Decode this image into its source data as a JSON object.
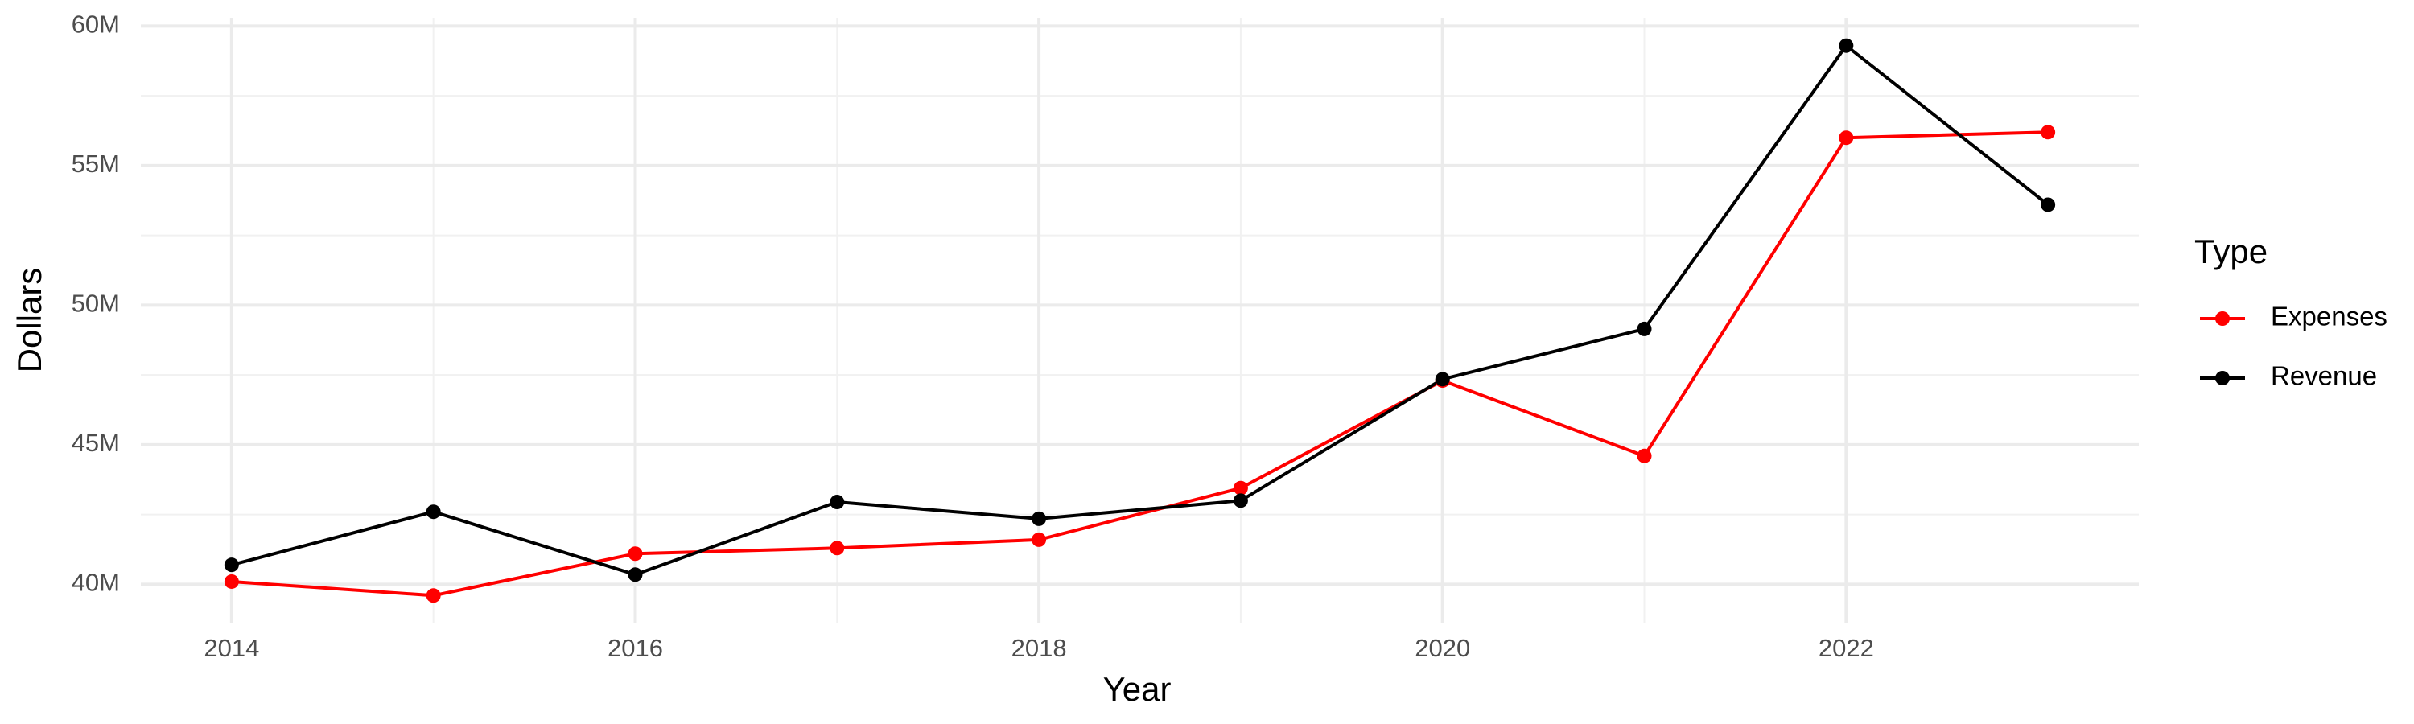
{
  "chart_data": {
    "type": "line",
    "x_label": "Year",
    "y_label": "Dollars",
    "legend_title": "Type",
    "x": [
      2014,
      2015,
      2016,
      2017,
      2018,
      2019,
      2020,
      2021,
      2022,
      2023
    ],
    "series": [
      {
        "name": "Expenses",
        "color": "#ff0000",
        "values": [
          40100000,
          39600000,
          41100000,
          41300000,
          41600000,
          43450000,
          47300000,
          44600000,
          56000000,
          56200000
        ]
      },
      {
        "name": "Revenue",
        "color": "#000000",
        "values": [
          40700000,
          42600000,
          40350000,
          42950000,
          42350000,
          43000000,
          47350000,
          49150000,
          59300000,
          53600000
        ]
      }
    ],
    "xlim": [
      2013.55,
      2023.45
    ],
    "xticks": [
      2014,
      2016,
      2018,
      2020,
      2022
    ],
    "ylim": [
      38600000,
      60300000
    ],
    "yticks": [
      {
        "value": 40000000,
        "label": "40M"
      },
      {
        "value": 45000000,
        "label": "45M"
      },
      {
        "value": 50000000,
        "label": "50M"
      },
      {
        "value": 55000000,
        "label": "55M"
      },
      {
        "value": 60000000,
        "label": "60M"
      }
    ],
    "grid": true,
    "legend_position": "right"
  }
}
